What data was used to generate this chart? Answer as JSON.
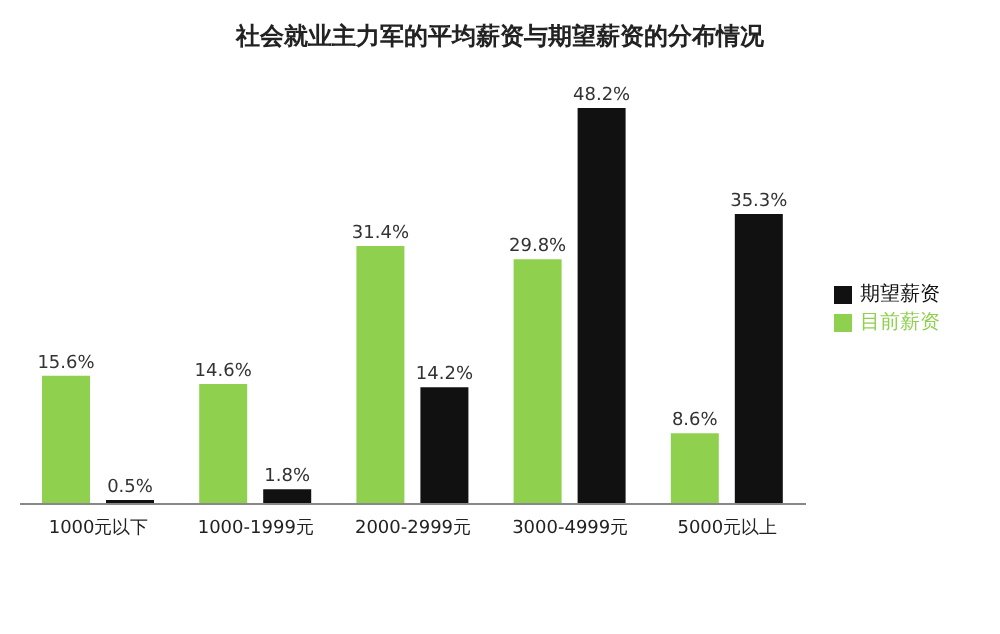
{
  "chart_data": {
    "type": "bar",
    "title": "社会就业主力军的平均薪资与期望薪资的分布情况",
    "categories": [
      "1000元以下",
      "1000-1999元",
      "2000-2999元",
      "3000-4999元",
      "5000元以上"
    ],
    "series": [
      {
        "name": "目前薪资",
        "color": "#8fd14f",
        "values": [
          15.6,
          14.6,
          31.4,
          29.8,
          8.6
        ],
        "value_labels": [
          "15.6%",
          "14.6%",
          "31.4%",
          "29.8%",
          "8.6%"
        ]
      },
      {
        "name": "期望薪资",
        "color": "#111111",
        "values": [
          0.5,
          1.8,
          14.2,
          48.2,
          35.3
        ],
        "value_labels": [
          "0.5%",
          "1.8%",
          "14.2%",
          "48.2%",
          "35.3%"
        ]
      }
    ],
    "legend": "right"
  }
}
